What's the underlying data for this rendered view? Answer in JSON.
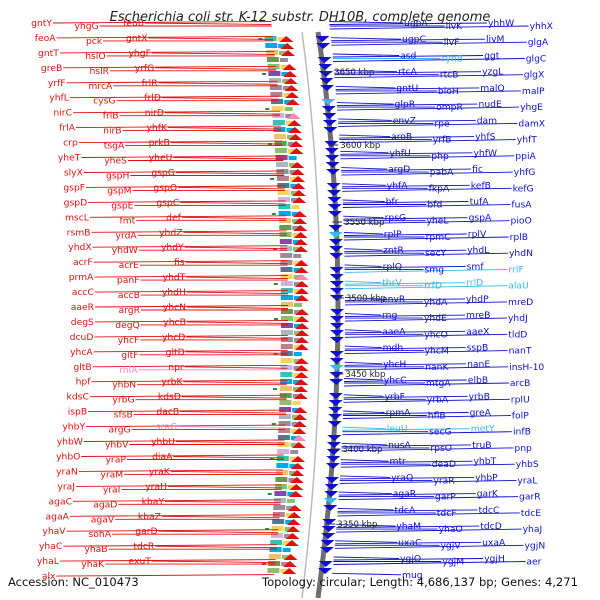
{
  "title": "Escherichia coli str. K-12 substr. DH10B, complete genome",
  "footer": {
    "accession": "Accession: NC_010473",
    "summary": "Topology: circular; Length: 4,686,137 bp; Genes: 4,271"
  },
  "colors": {
    "minus_strand": "#e01010",
    "plus_strand": "#1010cc",
    "rna_minus": "#ff88bb",
    "rna_plus": "#33bbee",
    "backbone": "#777777"
  },
  "scale_ticks": [
    "3650 kbp",
    "3600 kbp",
    "3550 kbp",
    "3500 kbp",
    "3450 kbp",
    "3400 kbp",
    "3350 kbp"
  ],
  "left_labels": [
    {
      "text": "gntY",
      "kind": "cds"
    },
    {
      "text": "yhgG",
      "kind": "cds"
    },
    {
      "text": "feoB",
      "kind": "cds"
    },
    {
      "text": "feoA",
      "kind": "cds"
    },
    {
      "text": "pck",
      "kind": "cds"
    },
    {
      "text": "gntX",
      "kind": "cds"
    },
    {
      "text": "gntT",
      "kind": "cds"
    },
    {
      "text": "hslO",
      "kind": "cds"
    },
    {
      "text": "yhgF",
      "kind": "cds"
    },
    {
      "text": "greB",
      "kind": "cds"
    },
    {
      "text": "hslR",
      "kind": "cds"
    },
    {
      "text": "yrfG",
      "kind": "cds"
    },
    {
      "text": "yrfF",
      "kind": "cds"
    },
    {
      "text": "mrcA",
      "kind": "cds"
    },
    {
      "text": "frlR",
      "kind": "cds"
    },
    {
      "text": "yhfL",
      "kind": "cds"
    },
    {
      "text": "cysG",
      "kind": "cds"
    },
    {
      "text": "frlD",
      "kind": "cds"
    },
    {
      "text": "nirC",
      "kind": "cds"
    },
    {
      "text": "frlB",
      "kind": "cds"
    },
    {
      "text": "nirD",
      "kind": "cds"
    },
    {
      "text": "frlA",
      "kind": "cds"
    },
    {
      "text": "nirB",
      "kind": "cds"
    },
    {
      "text": "yhfK",
      "kind": "cds"
    },
    {
      "text": "crp",
      "kind": "cds"
    },
    {
      "text": "tsgA",
      "kind": "cds"
    },
    {
      "text": "prkB",
      "kind": "cds"
    },
    {
      "text": "yheT",
      "kind": "cds"
    },
    {
      "text": "yheS",
      "kind": "cds"
    },
    {
      "text": "yheU",
      "kind": "cds"
    },
    {
      "text": "slyX",
      "kind": "cds"
    },
    {
      "text": "gspH",
      "kind": "cds"
    },
    {
      "text": "gspG",
      "kind": "cds"
    },
    {
      "text": "gspF",
      "kind": "cds"
    },
    {
      "text": "gspM",
      "kind": "cds"
    },
    {
      "text": "gspO",
      "kind": "cds"
    },
    {
      "text": "gspD",
      "kind": "cds"
    },
    {
      "text": "gspE",
      "kind": "cds"
    },
    {
      "text": "gspC",
      "kind": "cds"
    },
    {
      "text": "mscL",
      "kind": "cds"
    },
    {
      "text": "fmt",
      "kind": "cds"
    },
    {
      "text": "def",
      "kind": "cds"
    },
    {
      "text": "rsmB",
      "kind": "cds"
    },
    {
      "text": "yrdA",
      "kind": "cds"
    },
    {
      "text": "yhdZ",
      "kind": "cds"
    },
    {
      "text": "yhdX",
      "kind": "cds"
    },
    {
      "text": "yhdW",
      "kind": "cds"
    },
    {
      "text": "yhdY",
      "kind": "cds"
    },
    {
      "text": "acrF",
      "kind": "cds"
    },
    {
      "text": "acrE",
      "kind": "cds"
    },
    {
      "text": "fis",
      "kind": "cds"
    },
    {
      "text": "prmA",
      "kind": "cds"
    },
    {
      "text": "panF",
      "kind": "cds"
    },
    {
      "text": "yhdT",
      "kind": "cds"
    },
    {
      "text": "accC",
      "kind": "cds"
    },
    {
      "text": "accB",
      "kind": "cds"
    },
    {
      "text": "yhdH",
      "kind": "cds"
    },
    {
      "text": "aaeR",
      "kind": "cds"
    },
    {
      "text": "argR",
      "kind": "cds"
    },
    {
      "text": "yhcN",
      "kind": "cds"
    },
    {
      "text": "degS",
      "kind": "cds"
    },
    {
      "text": "degQ",
      "kind": "cds"
    },
    {
      "text": "yhcB",
      "kind": "cds"
    },
    {
      "text": "dcuD",
      "kind": "cds"
    },
    {
      "text": "yhcF",
      "kind": "cds"
    },
    {
      "text": "yhcD",
      "kind": "cds"
    },
    {
      "text": "yhcA",
      "kind": "cds"
    },
    {
      "text": "gltF",
      "kind": "cds"
    },
    {
      "text": "gltD",
      "kind": "cds"
    },
    {
      "text": "gltB",
      "kind": "cds"
    },
    {
      "text": "rhlA",
      "kind": "rna"
    },
    {
      "text": "npr",
      "kind": "cds"
    },
    {
      "text": "hpf",
      "kind": "cds"
    },
    {
      "text": "yhbN",
      "kind": "cds"
    },
    {
      "text": "yrbK",
      "kind": "cds"
    },
    {
      "text": "kdsC",
      "kind": "cds"
    },
    {
      "text": "yrbG",
      "kind": "cds"
    },
    {
      "text": "kdsD",
      "kind": "cds"
    },
    {
      "text": "ispB",
      "kind": "cds"
    },
    {
      "text": "sfsB",
      "kind": "cds"
    },
    {
      "text": "dacB",
      "kind": "cds"
    },
    {
      "text": "yhbY",
      "kind": "cds"
    },
    {
      "text": "argG",
      "kind": "cds"
    },
    {
      "text": "sraG",
      "kind": "rna"
    },
    {
      "text": "yhbW",
      "kind": "cds"
    },
    {
      "text": "yhbV",
      "kind": "cds"
    },
    {
      "text": "yhbU",
      "kind": "cds"
    },
    {
      "text": "yhbO",
      "kind": "cds"
    },
    {
      "text": "yraP",
      "kind": "cds"
    },
    {
      "text": "diaA",
      "kind": "cds"
    },
    {
      "text": "yraN",
      "kind": "cds"
    },
    {
      "text": "yraM",
      "kind": "cds"
    },
    {
      "text": "yraK",
      "kind": "cds"
    },
    {
      "text": "yraJ",
      "kind": "cds"
    },
    {
      "text": "yraI",
      "kind": "cds"
    },
    {
      "text": "yraH",
      "kind": "cds"
    },
    {
      "text": "agaC",
      "kind": "cds"
    },
    {
      "text": "agaD",
      "kind": "cds"
    },
    {
      "text": "kbaY",
      "kind": "cds"
    },
    {
      "text": "agaA",
      "kind": "cds"
    },
    {
      "text": "agaV",
      "kind": "cds"
    },
    {
      "text": "kbaZ",
      "kind": "cds"
    },
    {
      "text": "yhaV",
      "kind": "cds"
    },
    {
      "text": "sohA",
      "kind": "cds"
    },
    {
      "text": "garD",
      "kind": "cds"
    },
    {
      "text": "yhaC",
      "kind": "cds"
    },
    {
      "text": "yhaB",
      "kind": "cds"
    },
    {
      "text": "tdcR",
      "kind": "cds"
    },
    {
      "text": "yhaL",
      "kind": "cds"
    },
    {
      "text": "yhaK",
      "kind": "cds"
    },
    {
      "text": "exuT",
      "kind": "cds"
    },
    {
      "text": "alx",
      "kind": "cds"
    }
  ],
  "right_labels": [
    {
      "text": "ugpA",
      "kind": "cds"
    },
    {
      "text": "livK",
      "kind": "cds"
    },
    {
      "text": "yhhW",
      "kind": "cds"
    },
    {
      "text": "yhhX",
      "kind": "cds"
    },
    {
      "text": "ugpC",
      "kind": "cds"
    },
    {
      "text": "livF",
      "kind": "cds"
    },
    {
      "text": "livM",
      "kind": "cds"
    },
    {
      "text": "glgA",
      "kind": "cds"
    },
    {
      "text": "asd",
      "kind": "cds"
    },
    {
      "text": "ryhB",
      "kind": "rna"
    },
    {
      "text": "ggt",
      "kind": "cds"
    },
    {
      "text": "glgC",
      "kind": "cds"
    },
    {
      "text": "rtcA",
      "kind": "cds"
    },
    {
      "text": "rtcB",
      "kind": "cds"
    },
    {
      "text": "yzgL",
      "kind": "cds"
    },
    {
      "text": "glgX",
      "kind": "cds"
    },
    {
      "text": "gntU",
      "kind": "cds"
    },
    {
      "text": "bioH",
      "kind": "cds"
    },
    {
      "text": "malQ",
      "kind": "cds"
    },
    {
      "text": "malP",
      "kind": "cds"
    },
    {
      "text": "glpR",
      "kind": "cds"
    },
    {
      "text": "ompR",
      "kind": "cds"
    },
    {
      "text": "nudE",
      "kind": "cds"
    },
    {
      "text": "yhgE",
      "kind": "cds"
    },
    {
      "text": "envZ",
      "kind": "cds"
    },
    {
      "text": "rpe",
      "kind": "cds"
    },
    {
      "text": "dam",
      "kind": "cds"
    },
    {
      "text": "damX",
      "kind": "cds"
    },
    {
      "text": "aroB",
      "kind": "cds"
    },
    {
      "text": "yrfB",
      "kind": "cds"
    },
    {
      "text": "yhfS",
      "kind": "cds"
    },
    {
      "text": "yhfT",
      "kind": "cds"
    },
    {
      "text": "yhfU",
      "kind": "cds"
    },
    {
      "text": "php",
      "kind": "cds"
    },
    {
      "text": "yhfW",
      "kind": "cds"
    },
    {
      "text": "ppiA",
      "kind": "cds"
    },
    {
      "text": "argD",
      "kind": "cds"
    },
    {
      "text": "pabA",
      "kind": "cds"
    },
    {
      "text": "fic",
      "kind": "cds"
    },
    {
      "text": "yhfG",
      "kind": "cds"
    },
    {
      "text": "yhfA",
      "kind": "cds"
    },
    {
      "text": "fkpA",
      "kind": "cds"
    },
    {
      "text": "kefB",
      "kind": "cds"
    },
    {
      "text": "kefG",
      "kind": "cds"
    },
    {
      "text": "bfr",
      "kind": "cds"
    },
    {
      "text": "bfd",
      "kind": "cds"
    },
    {
      "text": "tufA",
      "kind": "cds"
    },
    {
      "text": "fusA",
      "kind": "cds"
    },
    {
      "text": "rpsG",
      "kind": "cds"
    },
    {
      "text": "yheL",
      "kind": "cds"
    },
    {
      "text": "gspA",
      "kind": "cds"
    },
    {
      "text": "pioO",
      "kind": "cds"
    },
    {
      "text": "rplP",
      "kind": "cds"
    },
    {
      "text": "rpmC",
      "kind": "cds"
    },
    {
      "text": "rplV",
      "kind": "cds"
    },
    {
      "text": "rplB",
      "kind": "cds"
    },
    {
      "text": "zntR",
      "kind": "cds"
    },
    {
      "text": "secY",
      "kind": "cds"
    },
    {
      "text": "yhdL",
      "kind": "cds"
    },
    {
      "text": "yhdN",
      "kind": "cds"
    },
    {
      "text": "rplQ",
      "kind": "cds"
    },
    {
      "text": "smg",
      "kind": "cds"
    },
    {
      "text": "smf",
      "kind": "cds"
    },
    {
      "text": "rrlF",
      "kind": "rna"
    },
    {
      "text": "thrV",
      "kind": "rna"
    },
    {
      "text": "rrfD",
      "kind": "rna"
    },
    {
      "text": "rrlD",
      "kind": "rna"
    },
    {
      "text": "alaU",
      "kind": "rna"
    },
    {
      "text": "envR",
      "kind": "cds"
    },
    {
      "text": "yhdA",
      "kind": "cds"
    },
    {
      "text": "yhdP",
      "kind": "cds"
    },
    {
      "text": "mreD",
      "kind": "cds"
    },
    {
      "text": "rng",
      "kind": "cds"
    },
    {
      "text": "yhdE",
      "kind": "cds"
    },
    {
      "text": "mreB",
      "kind": "cds"
    },
    {
      "text": "yhdJ",
      "kind": "cds"
    },
    {
      "text": "aaeA",
      "kind": "cds"
    },
    {
      "text": "yhcO",
      "kind": "cds"
    },
    {
      "text": "aaeX",
      "kind": "cds"
    },
    {
      "text": "tldD",
      "kind": "cds"
    },
    {
      "text": "mdh",
      "kind": "cds"
    },
    {
      "text": "yhcM",
      "kind": "cds"
    },
    {
      "text": "sspB",
      "kind": "cds"
    },
    {
      "text": "nanT",
      "kind": "cds"
    },
    {
      "text": "yhcH",
      "kind": "cds"
    },
    {
      "text": "nanK",
      "kind": "cds"
    },
    {
      "text": "nanE",
      "kind": "cds"
    },
    {
      "text": "insH-10",
      "kind": "cds"
    },
    {
      "text": "yhcC",
      "kind": "cds"
    },
    {
      "text": "mtgA",
      "kind": "cds"
    },
    {
      "text": "elbB",
      "kind": "cds"
    },
    {
      "text": "arcB",
      "kind": "cds"
    },
    {
      "text": "yrbF",
      "kind": "cds"
    },
    {
      "text": "yrbA",
      "kind": "cds"
    },
    {
      "text": "yrbB",
      "kind": "cds"
    },
    {
      "text": "rplU",
      "kind": "cds"
    },
    {
      "text": "rpmA",
      "kind": "cds"
    },
    {
      "text": "hflB",
      "kind": "cds"
    },
    {
      "text": "greA",
      "kind": "cds"
    },
    {
      "text": "folP",
      "kind": "cds"
    },
    {
      "text": "leuU",
      "kind": "rna"
    },
    {
      "text": "secG",
      "kind": "cds"
    },
    {
      "text": "metY",
      "kind": "rna"
    },
    {
      "text": "infB",
      "kind": "cds"
    },
    {
      "text": "nusA",
      "kind": "cds"
    },
    {
      "text": "rpsO",
      "kind": "cds"
    },
    {
      "text": "truB",
      "kind": "cds"
    },
    {
      "text": "pnp",
      "kind": "cds"
    },
    {
      "text": "mtr",
      "kind": "cds"
    },
    {
      "text": "deaD",
      "kind": "cds"
    },
    {
      "text": "yhbT",
      "kind": "cds"
    },
    {
      "text": "yhbS",
      "kind": "cds"
    },
    {
      "text": "yraQ",
      "kind": "cds"
    },
    {
      "text": "yraR",
      "kind": "cds"
    },
    {
      "text": "yhbP",
      "kind": "cds"
    },
    {
      "text": "yraL",
      "kind": "cds"
    },
    {
      "text": "agaR",
      "kind": "cds"
    },
    {
      "text": "garP",
      "kind": "cds"
    },
    {
      "text": "garK",
      "kind": "cds"
    },
    {
      "text": "garR",
      "kind": "cds"
    },
    {
      "text": "tdcA",
      "kind": "cds"
    },
    {
      "text": "tdcF",
      "kind": "cds"
    },
    {
      "text": "tdcC",
      "kind": "cds"
    },
    {
      "text": "tdcE",
      "kind": "cds"
    },
    {
      "text": "yhaM",
      "kind": "cds"
    },
    {
      "text": "yhaO",
      "kind": "cds"
    },
    {
      "text": "tdcD",
      "kind": "cds"
    },
    {
      "text": "yhaJ",
      "kind": "cds"
    },
    {
      "text": "uxaC",
      "kind": "cds"
    },
    {
      "text": "ygjV",
      "kind": "cds"
    },
    {
      "text": "uxaA",
      "kind": "cds"
    },
    {
      "text": "ygjN",
      "kind": "cds"
    },
    {
      "text": "ygjO",
      "kind": "cds"
    },
    {
      "text": "ygjM",
      "kind": "cds"
    },
    {
      "text": "ygjH",
      "kind": "cds"
    },
    {
      "text": "aer",
      "kind": "cds"
    },
    {
      "text": "mug",
      "kind": "cds"
    }
  ]
}
